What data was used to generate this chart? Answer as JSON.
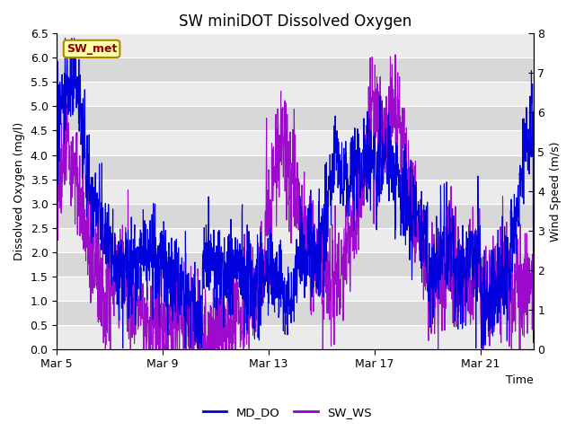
{
  "title": "SW miniDOT Dissolved Oxygen",
  "ylabel_left": "Dissolved Oxygen (mg/l)",
  "ylabel_right": "Wind Speed (m/s)",
  "xlabel": "Time",
  "ylim_left": [
    0.0,
    6.5
  ],
  "ylim_right": [
    0.0,
    8.0
  ],
  "yticks_left": [
    0.0,
    0.5,
    1.0,
    1.5,
    2.0,
    2.5,
    3.0,
    3.5,
    4.0,
    4.5,
    5.0,
    5.5,
    6.0,
    6.5
  ],
  "yticks_right": [
    0.0,
    1.0,
    2.0,
    3.0,
    4.0,
    5.0,
    6.0,
    7.0,
    8.0
  ],
  "xtick_labels": [
    "Mar 5",
    "Mar 9",
    "Mar 13",
    "Mar 17",
    "Mar 21"
  ],
  "xtick_positions": [
    0,
    4,
    8,
    12,
    16
  ],
  "xlim": [
    0,
    18
  ],
  "color_do": "#0000dd",
  "color_ws": "#9900cc",
  "legend_labels": [
    "MD_DO",
    "SW_WS"
  ],
  "annotation_text": "SW_met",
  "annotation_bg": "#ffffaa",
  "annotation_border": "#aa8800",
  "annotation_fg": "#880000",
  "bg_light": "#ebebeb",
  "bg_dark": "#d8d8d8",
  "grid_color": "#ffffff",
  "title_fontsize": 12,
  "label_fontsize": 9,
  "tick_fontsize": 9,
  "linewidth": 0.8
}
